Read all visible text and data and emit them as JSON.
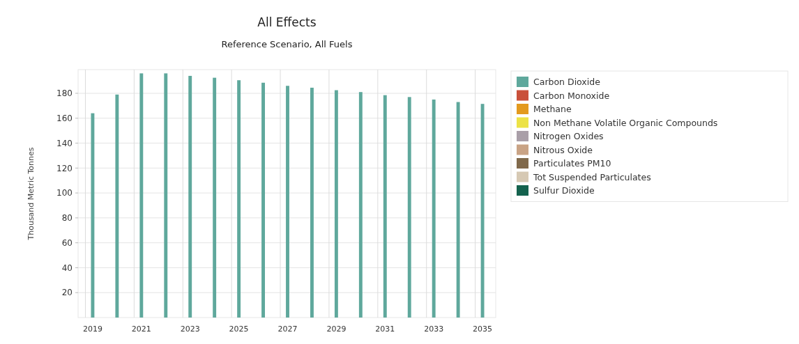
{
  "chart_data": {
    "type": "bar",
    "title": "All Effects",
    "subtitle": "Reference Scenario, All Fuels",
    "ylabel": "Thousand Metric Tonnes",
    "categories": [
      "2019",
      null,
      "2021",
      null,
      "2023",
      null,
      "2025",
      null,
      "2027",
      null,
      "2029",
      null,
      "2031",
      null,
      "2033",
      null,
      "2035"
    ],
    "series": [
      {
        "name": "Carbon Dioxide",
        "color": "#5fa89c",
        "values": [
          164,
          179,
          196,
          196,
          194,
          192.5,
          190.5,
          188.5,
          186,
          184.5,
          182.5,
          181,
          178.5,
          177,
          175,
          173,
          171.5
        ]
      },
      {
        "name": "Carbon Monoxide",
        "color": "#c9503a",
        "values": [
          null,
          null,
          null,
          null,
          null,
          null,
          null,
          null,
          null,
          null,
          null,
          null,
          null,
          null,
          null,
          null,
          null
        ]
      },
      {
        "name": "Methane",
        "color": "#e39a1e",
        "values": [
          null,
          null,
          null,
          null,
          null,
          null,
          null,
          null,
          null,
          null,
          null,
          null,
          null,
          null,
          null,
          null,
          null
        ]
      },
      {
        "name": "Non Methane Volatile Organic Compounds",
        "color": "#ece246",
        "values": [
          null,
          null,
          null,
          null,
          null,
          null,
          null,
          null,
          null,
          null,
          null,
          null,
          null,
          null,
          null,
          null,
          null
        ]
      },
      {
        "name": "Nitrogen Oxides",
        "color": "#a99fa8",
        "values": [
          null,
          null,
          null,
          null,
          null,
          null,
          null,
          null,
          null,
          null,
          null,
          null,
          null,
          null,
          null,
          null,
          null
        ]
      },
      {
        "name": "Nitrous Oxide",
        "color": "#c9a385",
        "values": [
          null,
          null,
          null,
          null,
          null,
          null,
          null,
          null,
          null,
          null,
          null,
          null,
          null,
          null,
          null,
          null,
          null
        ]
      },
      {
        "name": "Particulates PM10",
        "color": "#80694b",
        "values": [
          null,
          null,
          null,
          null,
          null,
          null,
          null,
          null,
          null,
          null,
          null,
          null,
          null,
          null,
          null,
          null,
          null
        ]
      },
      {
        "name": "Tot Suspended Particulates",
        "color": "#d6c9b4",
        "values": [
          null,
          null,
          null,
          null,
          null,
          null,
          null,
          null,
          null,
          null,
          null,
          null,
          null,
          null,
          null,
          null,
          null
        ]
      },
      {
        "name": "Sulfur Dioxide",
        "color": "#14624e",
        "values": [
          null,
          null,
          null,
          null,
          null,
          null,
          null,
          null,
          null,
          null,
          null,
          null,
          null,
          null,
          null,
          null,
          null
        ]
      }
    ],
    "ylim": [
      0,
      199
    ],
    "yticks": [
      20,
      40,
      60,
      80,
      100,
      120,
      140,
      160,
      180
    ],
    "grid": true,
    "legend": "right"
  }
}
